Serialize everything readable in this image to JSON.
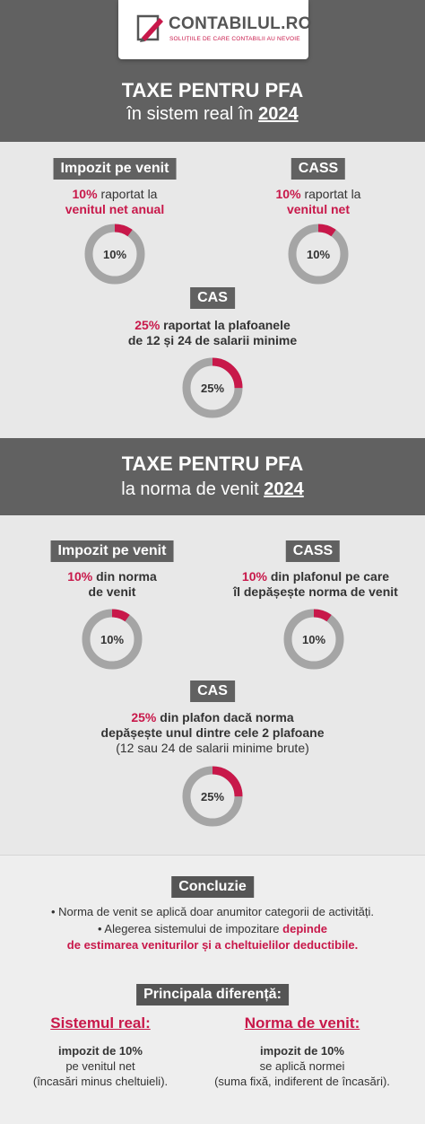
{
  "colors": {
    "accent": "#c8184a",
    "band": "#616161",
    "ring": "#a5a5a5"
  },
  "logo": {
    "name": "CONTABILUL.RO",
    "tagline": "SOLUȚIILE DE CARE CONTABILII AU NEVOIE",
    "icon": "pen-on-paper-icon"
  },
  "section1": {
    "title": "TAXE PENTRU PFA",
    "subtitle_prefix": "în sistem real în",
    "year": "2024",
    "impozit": {
      "label": "Impozit pe venit",
      "pct": "10%",
      "line1": "raportat la",
      "line2": "venitul net anual",
      "donut_label": "10%",
      "value": 0.1
    },
    "cass": {
      "label": "CASS",
      "pct": "10%",
      "line1": "raportat la",
      "line2": "venitul net",
      "donut_label": "10%",
      "value": 0.1
    },
    "cas": {
      "label": "CAS",
      "pct": "25%",
      "line1": "raportat la plafoanele",
      "line2": "de 12 și 24 de salarii minime",
      "donut_label": "25%",
      "value": 0.25
    }
  },
  "section2": {
    "title": "TAXE PENTRU PFA",
    "subtitle_prefix": "la norma de venit",
    "year": "2024",
    "impozit": {
      "label": "Impozit pe venit",
      "pct": "10%",
      "line1": "din norma",
      "line2": "de venit",
      "donut_label": "10%",
      "value": 0.1
    },
    "cass": {
      "label": "CASS",
      "pct": "10%",
      "line1": "din plafonul pe care",
      "line2": "îl depășește norma de venit",
      "donut_label": "10%",
      "value": 0.1
    },
    "cas": {
      "label": "CAS",
      "pct": "25%",
      "line1": "din plafon dacă norma",
      "line2": "depășește unul dintre cele 2 plafoane",
      "line3": "(12 sau 24 de salarii minime brute)",
      "donut_label": "25%",
      "value": 0.25
    }
  },
  "conclusion": {
    "label": "Concluzie",
    "bullet1": "• Norma de venit se aplică doar anumitor categorii de activități.",
    "bullet2_prefix": "• Alegerea sistemului de impozitare",
    "bullet2_highlight1": "depinde",
    "bullet2_highlight2": "de estimarea veniturilor și a cheltuielilor deductibile."
  },
  "difference": {
    "label": "Principala diferență:",
    "real": {
      "heading": "Sistemul real:",
      "line1": "impozit de 10%",
      "line2": "pe venitul net",
      "line3": "(încasări minus cheltuieli)."
    },
    "norma": {
      "heading": "Norma de venit:",
      "line1": "impozit de 10%",
      "line2": "se aplică normei",
      "line3": "(suma fixă, indiferent de încasări)."
    }
  }
}
